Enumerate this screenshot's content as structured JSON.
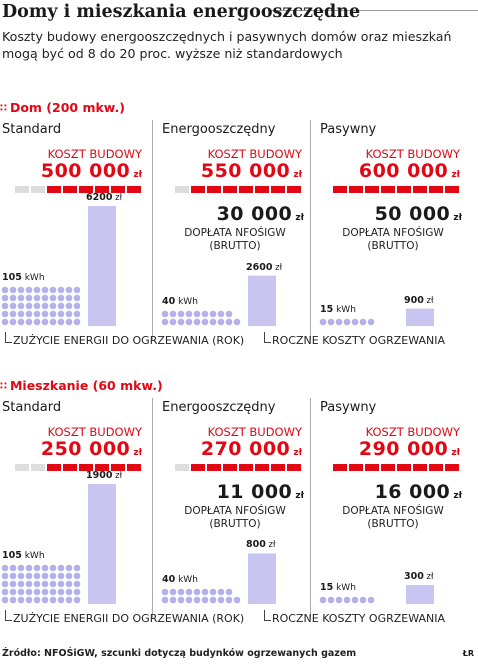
{
  "title": "Domy i mieszkania energooszczędne",
  "subtitle": "Koszty budowy energooszczędnych i pasywnych domów oraz mieszkań mogą być od 8 do 20 proc. wyższe niż standardowych",
  "cost_label": "KOSZT BUDOWY",
  "subsidy_label": "DOPŁATA NFOŚIGW (BRUTTO)",
  "currency": "zł",
  "energy_unit": "kWh",
  "legend_energy": "ZUŻYCIE ENERGII DO OGRZEWANIA (ROK)",
  "legend_cost": "ROCZNE KOSZTY OGRZEWANIA",
  "source": "Źródło: NFOŚiGW, szcunki dotyczą budynków ogrzewanych gazem",
  "initials": "ŁR",
  "colors": {
    "accent": "#e30613",
    "bar_cost": "#c8c6f0",
    "dot_energy": "#b3b0ea",
    "cost_grey": "#dddddd"
  },
  "chart_data": [
    {
      "type": "bar",
      "title": "Dom (200 mkw.)",
      "categories": [
        "Standard",
        "Energooszczędny",
        "Pasywny"
      ],
      "construction_cost": [
        "500 000",
        "550 000",
        "600 000"
      ],
      "subsidy": [
        null,
        "30 000",
        "50 000"
      ],
      "energy_kwh": [
        "105",
        "40",
        "15"
      ],
      "heating_cost": [
        "6200",
        "2600",
        "900"
      ],
      "series": [
        {
          "name": "ZUŻYCIE ENERGII DO OGRZEWANIA (ROK)",
          "values": [
            105,
            40,
            15
          ]
        },
        {
          "name": "ROCZNE KOSZTY OGRZEWANIA",
          "values": [
            6200,
            2600,
            900
          ]
        }
      ]
    },
    {
      "type": "bar",
      "title": "Mieszkanie (60 mkw.)",
      "categories": [
        "Standard",
        "Energooszczędny",
        "Pasywny"
      ],
      "construction_cost": [
        "250 000",
        "270 000",
        "290 000"
      ],
      "subsidy": [
        null,
        "11 000",
        "16 000"
      ],
      "energy_kwh": [
        "105",
        "40",
        "15"
      ],
      "heating_cost": [
        "1900",
        "800",
        "300"
      ],
      "series": [
        {
          "name": "ZUŻYCIE ENERGII DO OGRZEWANIA (ROK)",
          "values": [
            105,
            40,
            15
          ]
        },
        {
          "name": "ROCZNE KOSZTY OGRZEWANIA",
          "values": [
            1900,
            800,
            300
          ]
        }
      ]
    }
  ]
}
